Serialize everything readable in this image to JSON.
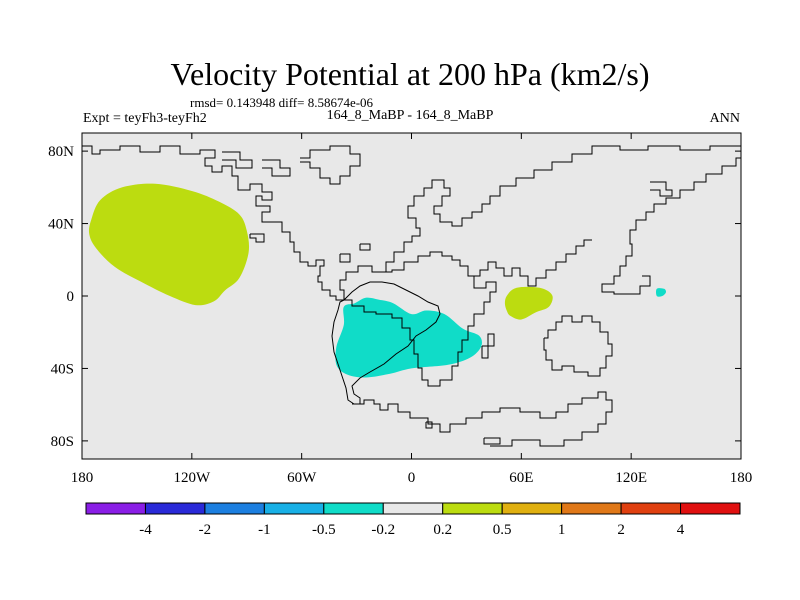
{
  "chart_data": {
    "type": "contour_map",
    "title": "Velocity Potential at 200 hPa (km2/s)",
    "stats_text": "rmsd= 0.143948 diff= 8.58674e-06",
    "left_label": "Expt = teyFh3-teyFh2",
    "center_label": "164_8_MaBP - 164_8_MaBP",
    "right_label": "ANN",
    "background_color": "#e8e8e8",
    "x_ticks": [
      {
        "value": -180,
        "label": "180"
      },
      {
        "value": -120,
        "label": "120W"
      },
      {
        "value": -60,
        "label": "60W"
      },
      {
        "value": 0,
        "label": "0"
      },
      {
        "value": 60,
        "label": "60E"
      },
      {
        "value": 120,
        "label": "120E"
      },
      {
        "value": 180,
        "label": "180"
      }
    ],
    "y_ticks": [
      {
        "value": 80,
        "label": "80N"
      },
      {
        "value": 40,
        "label": "40N"
      },
      {
        "value": 0,
        "label": "0"
      },
      {
        "value": -40,
        "label": "40S"
      },
      {
        "value": -80,
        "label": "80S"
      }
    ],
    "xlim": [
      -180,
      180
    ],
    "ylim": [
      -90,
      90
    ],
    "colorbar": {
      "colors": [
        "#8a1ee6",
        "#2a2ad8",
        "#1c7fe0",
        "#18b0e6",
        "#10dcc8",
        "#e8e8e8",
        "#bcdc10",
        "#e0b010",
        "#e07818",
        "#e04010",
        "#e01010"
      ],
      "labels": [
        "-4",
        "-2",
        "-1",
        "-0.5",
        "-0.2",
        "0.2",
        "0.5",
        "1",
        "2",
        "4"
      ]
    },
    "regions": [
      {
        "name": "positive-anomaly-north-pacific",
        "level": "0.2 to 0.5",
        "color": "#bcdc10",
        "outline": [
          [
            -175,
            42
          ],
          [
            -170,
            53
          ],
          [
            -158,
            60
          ],
          [
            -140,
            62
          ],
          [
            -120,
            58
          ],
          [
            -105,
            52
          ],
          [
            -94,
            45
          ],
          [
            -90,
            36
          ],
          [
            -89,
            24
          ],
          [
            -94,
            10
          ],
          [
            -102,
            3
          ],
          [
            -108,
            -3
          ],
          [
            -118,
            -5
          ],
          [
            -132,
            0
          ],
          [
            -148,
            8
          ],
          [
            -162,
            16
          ],
          [
            -172,
            26
          ],
          [
            -176,
            34
          ]
        ]
      },
      {
        "name": "positive-anomaly-indian-ocean",
        "level": "0.2 to 0.5",
        "color": "#bcdc10",
        "outline": [
          [
            51,
            -4
          ],
          [
            52,
            0
          ],
          [
            56,
            4
          ],
          [
            63,
            5
          ],
          [
            72,
            4
          ],
          [
            77,
            0
          ],
          [
            75,
            -6
          ],
          [
            68,
            -9
          ],
          [
            60,
            -13
          ],
          [
            54,
            -11
          ],
          [
            52,
            -8
          ]
        ]
      },
      {
        "name": "positive-anomaly-small-patch",
        "level": "0.2 to 0.5",
        "color": "#bcdc10",
        "outline": []
      },
      {
        "name": "negative-anomaly-south-atlantic",
        "level": "-0.5 to -0.2",
        "color": "#10dcc8",
        "outline": [
          [
            -37,
            -6
          ],
          [
            -37,
            -16
          ],
          [
            -41,
            -28
          ],
          [
            -41,
            -38
          ],
          [
            -36,
            -43
          ],
          [
            -26,
            -45
          ],
          [
            -12,
            -43
          ],
          [
            0,
            -40
          ],
          [
            20,
            -38
          ],
          [
            32,
            -34
          ],
          [
            38,
            -28
          ],
          [
            37,
            -22
          ],
          [
            28,
            -18
          ],
          [
            18,
            -10
          ],
          [
            8,
            -8
          ],
          [
            0,
            -10
          ],
          [
            -10,
            -4
          ],
          [
            -18,
            -2
          ],
          [
            -25,
            -1
          ],
          [
            -31,
            -4
          ]
        ]
      },
      {
        "name": "negative-anomaly-small-patch",
        "level": "-0.5 to -0.2",
        "color": "#10dcc8",
        "outline": [
          [
            134,
            4
          ],
          [
            138,
            4
          ],
          [
            139,
            2
          ],
          [
            137,
            0
          ],
          [
            134,
            0
          ]
        ]
      }
    ]
  }
}
